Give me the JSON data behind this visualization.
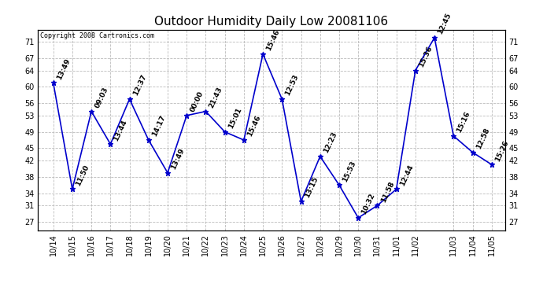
{
  "title": "Outdoor Humidity Daily Low 20081106",
  "copyright": "Copyright 2008 Cartronics.com",
  "x_labels": [
    "10/14",
    "10/15",
    "10/16",
    "10/17",
    "10/18",
    "10/19",
    "10/20",
    "10/21",
    "10/22",
    "10/23",
    "10/24",
    "10/25",
    "10/26",
    "10/27",
    "10/28",
    "10/29",
    "10/30",
    "10/31",
    "11/01",
    "11/02",
    "11/02",
    "11/03",
    "11/04",
    "11/05"
  ],
  "y_values": [
    61,
    35,
    54,
    46,
    57,
    47,
    39,
    53,
    54,
    49,
    47,
    68,
    57,
    32,
    43,
    36,
    28,
    31,
    35,
    64,
    72,
    48,
    44,
    41
  ],
  "point_labels": [
    "13:49",
    "11:50",
    "09:03",
    "13:44",
    "12:37",
    "14:17",
    "13:49",
    "00:00",
    "21:43",
    "15:01",
    "15:46",
    "15:46",
    "12:53",
    "13:15",
    "12:23",
    "15:53",
    "10:32",
    "11:58",
    "12:44",
    "15:36",
    "12:45",
    "15:16",
    "12:58",
    "15:26"
  ],
  "ylim": [
    25,
    74
  ],
  "yticks": [
    27,
    31,
    34,
    38,
    42,
    45,
    49,
    53,
    56,
    60,
    64,
    67,
    71
  ],
  "line_color": "#0000cc",
  "marker_color": "#0000cc",
  "bg_color": "#ffffff",
  "grid_color": "#bbbbbb",
  "title_fontsize": 11,
  "label_fontsize": 6.5
}
